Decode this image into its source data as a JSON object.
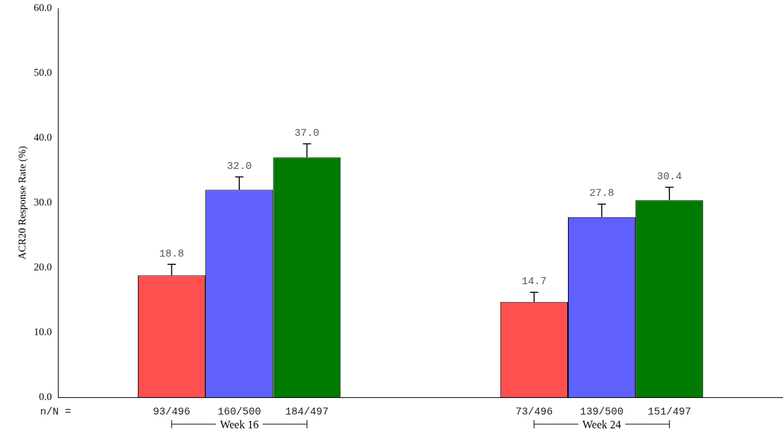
{
  "chart_data": {
    "type": "bar",
    "ylabel": "ACR20 Response Rate (%)",
    "categories": [
      "Week 16",
      "Week 24"
    ],
    "series": [
      {
        "color": "#ff5050",
        "values": [
          18.8,
          14.7
        ],
        "errors": [
          [
            18.8,
            20.5
          ],
          [
            14.7,
            16.2
          ]
        ],
        "value_labels": [
          "18.8",
          "14.7"
        ]
      },
      {
        "color": "#6060ff",
        "values": [
          32.0,
          27.8
        ],
        "errors": [
          [
            32.0,
            34.0
          ],
          [
            27.8,
            29.8
          ]
        ],
        "value_labels": [
          "32.0",
          "27.8"
        ]
      },
      {
        "color": "#007a00",
        "values": [
          37.0,
          30.4
        ],
        "errors": [
          [
            37.0,
            39.1
          ],
          [
            30.4,
            32.4
          ]
        ],
        "value_labels": [
          "37.0",
          "30.4"
        ]
      }
    ],
    "ylim": [
      0,
      60
    ],
    "yticks": [
      {
        "value": 0,
        "label": "0.0"
      },
      {
        "value": 10,
        "label": "10.0"
      },
      {
        "value": 20,
        "label": "20.0"
      },
      {
        "value": 30,
        "label": "30.0"
      },
      {
        "value": 40,
        "label": "40.0"
      },
      {
        "value": 50,
        "label": "50.0"
      },
      {
        "value": 60,
        "label": "60.0"
      }
    ],
    "annotations": [
      "n/N =",
      "93/496",
      "160/500",
      "184/497",
      "73/496",
      "139/500",
      "151/497"
    ],
    "grid": false,
    "legend": false
  }
}
